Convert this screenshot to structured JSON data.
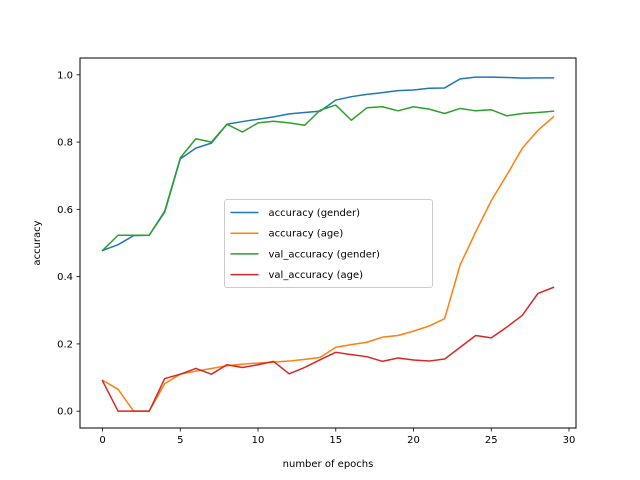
{
  "chart_data": {
    "type": "line",
    "title": "",
    "xlabel": "number of epochs",
    "ylabel": "accuracy",
    "xlim": [
      -1.45,
      30.45
    ],
    "ylim": [
      -0.05,
      1.05
    ],
    "xticks": [
      "0",
      "5",
      "10",
      "15",
      "20",
      "25",
      "30"
    ],
    "xtick_values": [
      0,
      5,
      10,
      15,
      20,
      25,
      30
    ],
    "yticks": [
      "0.0",
      "0.2",
      "0.4",
      "0.6",
      "0.8",
      "1.0"
    ],
    "ytick_values": [
      0.0,
      0.2,
      0.4,
      0.6,
      0.8,
      1.0
    ],
    "grid": false,
    "legend_position": "center",
    "x": [
      0,
      1,
      2,
      3,
      4,
      5,
      6,
      7,
      8,
      9,
      10,
      11,
      12,
      13,
      14,
      15,
      16,
      17,
      18,
      19,
      20,
      21,
      22,
      23,
      24,
      25,
      26,
      27,
      28,
      29
    ],
    "series": [
      {
        "name": "accuracy (gender)",
        "color": "#1f77b4",
        "values": [
          0.478,
          0.495,
          0.522,
          0.523,
          0.592,
          0.75,
          0.782,
          0.797,
          0.853,
          0.861,
          0.868,
          0.875,
          0.884,
          0.888,
          0.892,
          0.925,
          0.935,
          0.942,
          0.947,
          0.953,
          0.955,
          0.96,
          0.961,
          0.988,
          0.993,
          0.993,
          0.992,
          0.99,
          0.991,
          0.991
        ]
      },
      {
        "name": "accuracy (age)",
        "color": "#ff7f0e",
        "values": [
          0.092,
          0.065,
          0.0,
          0.0,
          0.082,
          0.11,
          0.119,
          0.127,
          0.135,
          0.14,
          0.143,
          0.146,
          0.149,
          0.154,
          0.16,
          0.19,
          0.198,
          0.205,
          0.22,
          0.225,
          0.238,
          0.253,
          0.275,
          0.435,
          0.533,
          0.626,
          0.702,
          0.782,
          0.835,
          0.875
        ]
      },
      {
        "name": "val_accuracy (gender)",
        "color": "#2ca02c",
        "values": [
          0.478,
          0.523,
          0.523,
          0.523,
          0.595,
          0.753,
          0.81,
          0.8,
          0.853,
          0.83,
          0.857,
          0.862,
          0.857,
          0.85,
          0.895,
          0.91,
          0.865,
          0.902,
          0.905,
          0.893,
          0.905,
          0.898,
          0.885,
          0.9,
          0.893,
          0.896,
          0.878,
          0.885,
          0.888,
          0.892
        ]
      },
      {
        "name": "val_accuracy (age)",
        "color": "#d62728",
        "values": [
          0.09,
          0.0,
          0.0,
          0.0,
          0.097,
          0.11,
          0.127,
          0.11,
          0.138,
          0.13,
          0.138,
          0.148,
          0.111,
          0.13,
          0.153,
          0.175,
          0.168,
          0.162,
          0.148,
          0.158,
          0.152,
          0.149,
          0.155,
          0.19,
          0.225,
          0.218,
          0.25,
          0.285,
          0.35,
          0.368
        ]
      }
    ]
  }
}
